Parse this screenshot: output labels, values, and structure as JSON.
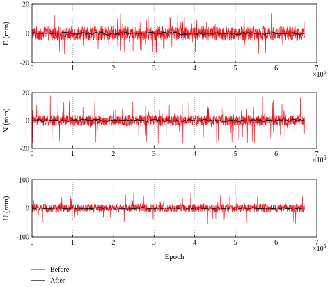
{
  "chart_data": [
    {
      "type": "line",
      "ylabel": "E (mm)",
      "xlabel": "",
      "xlim": [
        0,
        7
      ],
      "ylim": [
        -20,
        20
      ],
      "xticks": [
        "0",
        "1",
        "2",
        "3",
        "4",
        "5",
        "6",
        "7"
      ],
      "yticks": [
        "-20",
        "0",
        "20"
      ],
      "x_multiplier": "×10",
      "x_multiplier_exp": "5",
      "grid": "dotted vertical",
      "x_extent": [
        0,
        6.7
      ],
      "series": [
        {
          "name": "Before",
          "color": "#e8141e",
          "noise_amplitude": 5,
          "spike_amplitude": 14
        },
        {
          "name": "After",
          "color": "#000000",
          "noise_amplitude": 1
        }
      ]
    },
    {
      "type": "line",
      "ylabel": "N (mm)",
      "xlabel": "",
      "xlim": [
        0,
        7
      ],
      "ylim": [
        -20,
        20
      ],
      "xticks": [
        "0",
        "1",
        "2",
        "3",
        "4",
        "5",
        "6",
        "7"
      ],
      "yticks": [
        "-20",
        "0",
        "20"
      ],
      "x_multiplier": "×10",
      "x_multiplier_exp": "5",
      "grid": "dotted vertical",
      "x_extent": [
        0,
        6.7
      ],
      "series": [
        {
          "name": "Before",
          "color": "#e8141e",
          "noise_amplitude": 4,
          "spike_amplitude": 18
        },
        {
          "name": "After",
          "color": "#000000",
          "noise_amplitude": 1
        }
      ]
    },
    {
      "type": "line",
      "ylabel": "U (mm)",
      "xlabel": "Epoch",
      "xlim": [
        0,
        7
      ],
      "ylim": [
        -100,
        100
      ],
      "xticks": [
        "0",
        "1",
        "2",
        "3",
        "4",
        "5",
        "6",
        "7"
      ],
      "yticks": [
        "-100",
        "0",
        "100"
      ],
      "x_multiplier": "×10",
      "x_multiplier_exp": "5",
      "grid": "dotted vertical",
      "x_extent": [
        0,
        6.7
      ],
      "series": [
        {
          "name": "Before",
          "color": "#e8141e",
          "noise_amplitude": 15,
          "spike_amplitude": 55
        },
        {
          "name": "After",
          "color": "#000000",
          "noise_amplitude": 3
        }
      ]
    }
  ],
  "legend": {
    "placement": "bottom-left",
    "items": [
      {
        "label": "Before",
        "color": "#e8141e"
      },
      {
        "label": "After",
        "color": "#000000"
      }
    ]
  }
}
